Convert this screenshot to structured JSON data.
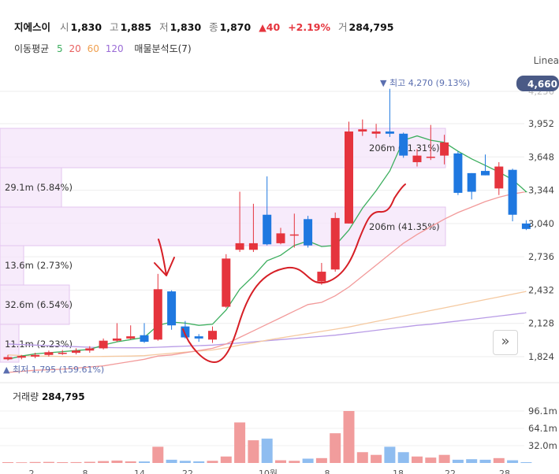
{
  "header": {
    "stock_name": "지에스이",
    "open_label": "시",
    "open": "1,830",
    "high_label": "고",
    "high": "1,885",
    "low_label": "저",
    "low": "1,830",
    "close_label": "종",
    "close": "1,870",
    "change": "▲40",
    "change_pct": "+2.19%",
    "volume_label": "거",
    "volume": "284,795",
    "ma_label": "이동평균",
    "ma_periods": [
      "5",
      "20",
      "60",
      "120"
    ],
    "volume_profile_label": "매물분석도(7)"
  },
  "scale_mode": "Linea",
  "colors": {
    "up": "#e5343d",
    "down": "#1f78e0",
    "ma5": "#3cae5e",
    "ma20": "#f29a9a",
    "ma60": "#f5c9a0",
    "ma120": "#b89be6",
    "vp_fill": "#f4e4f9",
    "vp_stroke": "#e3c6ef",
    "annotation": "#d61f26"
  },
  "price_axis": {
    "ticks": [
      "3,952",
      "3,648",
      "3,344",
      "3,040",
      "2,736",
      "2,432",
      "2,128",
      "1,824"
    ],
    "top_partial": "4,256",
    "current_tag": "4,660"
  },
  "markers": {
    "max_label": "▼ 최고 4,270 (9.13%)",
    "min_label": "▲ 최저 1,795 (159.61%)"
  },
  "volume_profile": [
    {
      "label": "206m (41.31%)",
      "value": 0.4131
    },
    {
      "label": "29.1m (5.84%)",
      "value": 0.0584
    },
    {
      "label": "206m (41.35%)",
      "value": 0.4135
    },
    {
      "label": "13.6m (2.73%)",
      "value": 0.0273
    },
    {
      "label": "32.6m (6.54%)",
      "value": 0.0654
    },
    {
      "label": "11.1m (2.23%)",
      "value": 0.0223
    }
  ],
  "volume_panel": {
    "title": "거래량",
    "value": "284,795",
    "ticks": [
      "96.1m",
      "64.1m",
      "32.0m"
    ]
  },
  "x_labels": [
    "2",
    "8",
    "14",
    "22",
    "10월",
    "8",
    "18",
    "22",
    "28"
  ],
  "nav_button": "»",
  "chart_data": {
    "type": "candlestick",
    "price_ylim": [
      1824,
      3952
    ],
    "volume_ylim": [
      0,
      96.1
    ],
    "x_tick_labels": [
      "2",
      "8",
      "14",
      "22",
      "10월",
      "8",
      "18",
      "22",
      "28"
    ],
    "candles": [
      {
        "o": 1800,
        "h": 1840,
        "l": 1790,
        "c": 1820,
        "vol": 1.5
      },
      {
        "o": 1815,
        "h": 1840,
        "l": 1800,
        "c": 1830,
        "vol": 1.2
      },
      {
        "o": 1825,
        "h": 1860,
        "l": 1810,
        "c": 1840,
        "vol": 1.8
      },
      {
        "o": 1840,
        "h": 1880,
        "l": 1825,
        "c": 1865,
        "vol": 2.0
      },
      {
        "o": 1860,
        "h": 1885,
        "l": 1840,
        "c": 1860,
        "vol": 1.5
      },
      {
        "o": 1860,
        "h": 1900,
        "l": 1845,
        "c": 1880,
        "vol": 1.6
      },
      {
        "o": 1880,
        "h": 1920,
        "l": 1860,
        "c": 1900,
        "vol": 2.2
      },
      {
        "o": 1900,
        "h": 1990,
        "l": 1890,
        "c": 1970,
        "vol": 3.5
      },
      {
        "o": 1970,
        "h": 2130,
        "l": 1960,
        "c": 1990,
        "vol": 4.5
      },
      {
        "o": 1990,
        "h": 2110,
        "l": 1980,
        "c": 2010,
        "vol": 3.0
      },
      {
        "o": 2020,
        "h": 2130,
        "l": 1950,
        "c": 1960,
        "vol": 2.8
      },
      {
        "o": 1980,
        "h": 2580,
        "l": 1970,
        "c": 2440,
        "vol": 30.0
      },
      {
        "o": 2420,
        "h": 2430,
        "l": 2070,
        "c": 2110,
        "vol": 6.0
      },
      {
        "o": 2100,
        "h": 2150,
        "l": 1990,
        "c": 2000,
        "vol": 4.0
      },
      {
        "o": 2010,
        "h": 2030,
        "l": 1960,
        "c": 1990,
        "vol": 3.0
      },
      {
        "o": 1980,
        "h": 2100,
        "l": 1950,
        "c": 2060,
        "vol": 4.0
      },
      {
        "o": 2280,
        "h": 2760,
        "l": 2270,
        "c": 2720,
        "vol": 12.0
      },
      {
        "o": 2800,
        "h": 3330,
        "l": 2780,
        "c": 2860,
        "vol": 75.0
      },
      {
        "o": 2800,
        "h": 3220,
        "l": 2780,
        "c": 2860,
        "vol": 42.0
      },
      {
        "o": 3120,
        "h": 3470,
        "l": 2840,
        "c": 2850,
        "vol": 45.0
      },
      {
        "o": 2860,
        "h": 3000,
        "l": 2850,
        "c": 2950,
        "vol": 5.0
      },
      {
        "o": 2940,
        "h": 3130,
        "l": 2820,
        "c": 2940,
        "vol": 4.0
      },
      {
        "o": 3080,
        "h": 3110,
        "l": 2820,
        "c": 2840,
        "vol": 8.0
      },
      {
        "o": 2510,
        "h": 2680,
        "l": 2480,
        "c": 2600,
        "vol": 9.0
      },
      {
        "o": 2620,
        "h": 3140,
        "l": 2600,
        "c": 3090,
        "vol": 55.0
      },
      {
        "o": 3040,
        "h": 3970,
        "l": 3040,
        "c": 3880,
        "vol": 96.1
      },
      {
        "o": 3880,
        "h": 3990,
        "l": 3840,
        "c": 3900,
        "vol": 20.0
      },
      {
        "o": 3860,
        "h": 3950,
        "l": 3820,
        "c": 3880,
        "vol": 15.0
      },
      {
        "o": 3880,
        "h": 4270,
        "l": 3830,
        "c": 3860,
        "vol": 30.0
      },
      {
        "o": 3860,
        "h": 3870,
        "l": 3640,
        "c": 3660,
        "vol": 20.0
      },
      {
        "o": 3600,
        "h": 3720,
        "l": 3560,
        "c": 3660,
        "vol": 12.0
      },
      {
        "o": 3640,
        "h": 3940,
        "l": 3620,
        "c": 3650,
        "vol": 10.0
      },
      {
        "o": 3660,
        "h": 3850,
        "l": 3580,
        "c": 3780,
        "vol": 15.0
      },
      {
        "o": 3680,
        "h": 3700,
        "l": 3300,
        "c": 3320,
        "vol": 6.0
      },
      {
        "o": 3500,
        "h": 3500,
        "l": 3260,
        "c": 3330,
        "vol": 7.0
      },
      {
        "o": 3520,
        "h": 3670,
        "l": 3480,
        "c": 3480,
        "vol": 6.0
      },
      {
        "o": 3360,
        "h": 3600,
        "l": 3300,
        "c": 3560,
        "vol": 9.0
      },
      {
        "o": 3530,
        "h": 3540,
        "l": 3060,
        "c": 3120,
        "vol": 5.0
      },
      {
        "o": 3040,
        "h": 3070,
        "l": 2980,
        "c": 2990,
        "vol": 1.5
      }
    ],
    "ma5": [
      1800,
      1830,
      1850,
      1860,
      1870,
      1880,
      1890,
      1930,
      1960,
      1980,
      2000,
      2110,
      2140,
      2130,
      2110,
      2120,
      2250,
      2440,
      2560,
      2700,
      2750,
      2840,
      2880,
      2830,
      2840,
      2980,
      3180,
      3340,
      3520,
      3800,
      3840,
      3800,
      3780,
      3700,
      3630,
      3570,
      3510,
      3440,
      3330
    ],
    "ma20": [
      1680,
      1690,
      1700,
      1705,
      1710,
      1720,
      1730,
      1740,
      1760,
      1780,
      1800,
      1830,
      1840,
      1860,
      1880,
      1900,
      1940,
      2000,
      2060,
      2120,
      2180,
      2240,
      2300,
      2320,
      2380,
      2460,
      2560,
      2660,
      2760,
      2860,
      2940,
      3010,
      3080,
      3140,
      3190,
      3240,
      3280,
      3310,
      3330
    ],
    "ma60": [
      1840,
      1835,
      1830,
      1828,
      1826,
      1825,
      1825,
      1826,
      1828,
      1830,
      1833,
      1845,
      1855,
      1865,
      1875,
      1885,
      1905,
      1930,
      1950,
      1975,
      1995,
      2015,
      2035,
      2055,
      2075,
      2095,
      2120,
      2145,
      2170,
      2195,
      2220,
      2245,
      2270,
      2295,
      2320,
      2345,
      2370,
      2395,
      2420
    ],
    "ma120": [
      1940,
      1935,
      1930,
      1925,
      1920,
      1915,
      1910,
      1908,
      1906,
      1905,
      1905,
      1910,
      1915,
      1920,
      1925,
      1930,
      1940,
      1950,
      1960,
      1970,
      1980,
      1990,
      2000,
      2010,
      2020,
      2035,
      2050,
      2065,
      2080,
      2095,
      2110,
      2120,
      2135,
      2150,
      2165,
      2180,
      2195,
      2210,
      2225
    ]
  }
}
